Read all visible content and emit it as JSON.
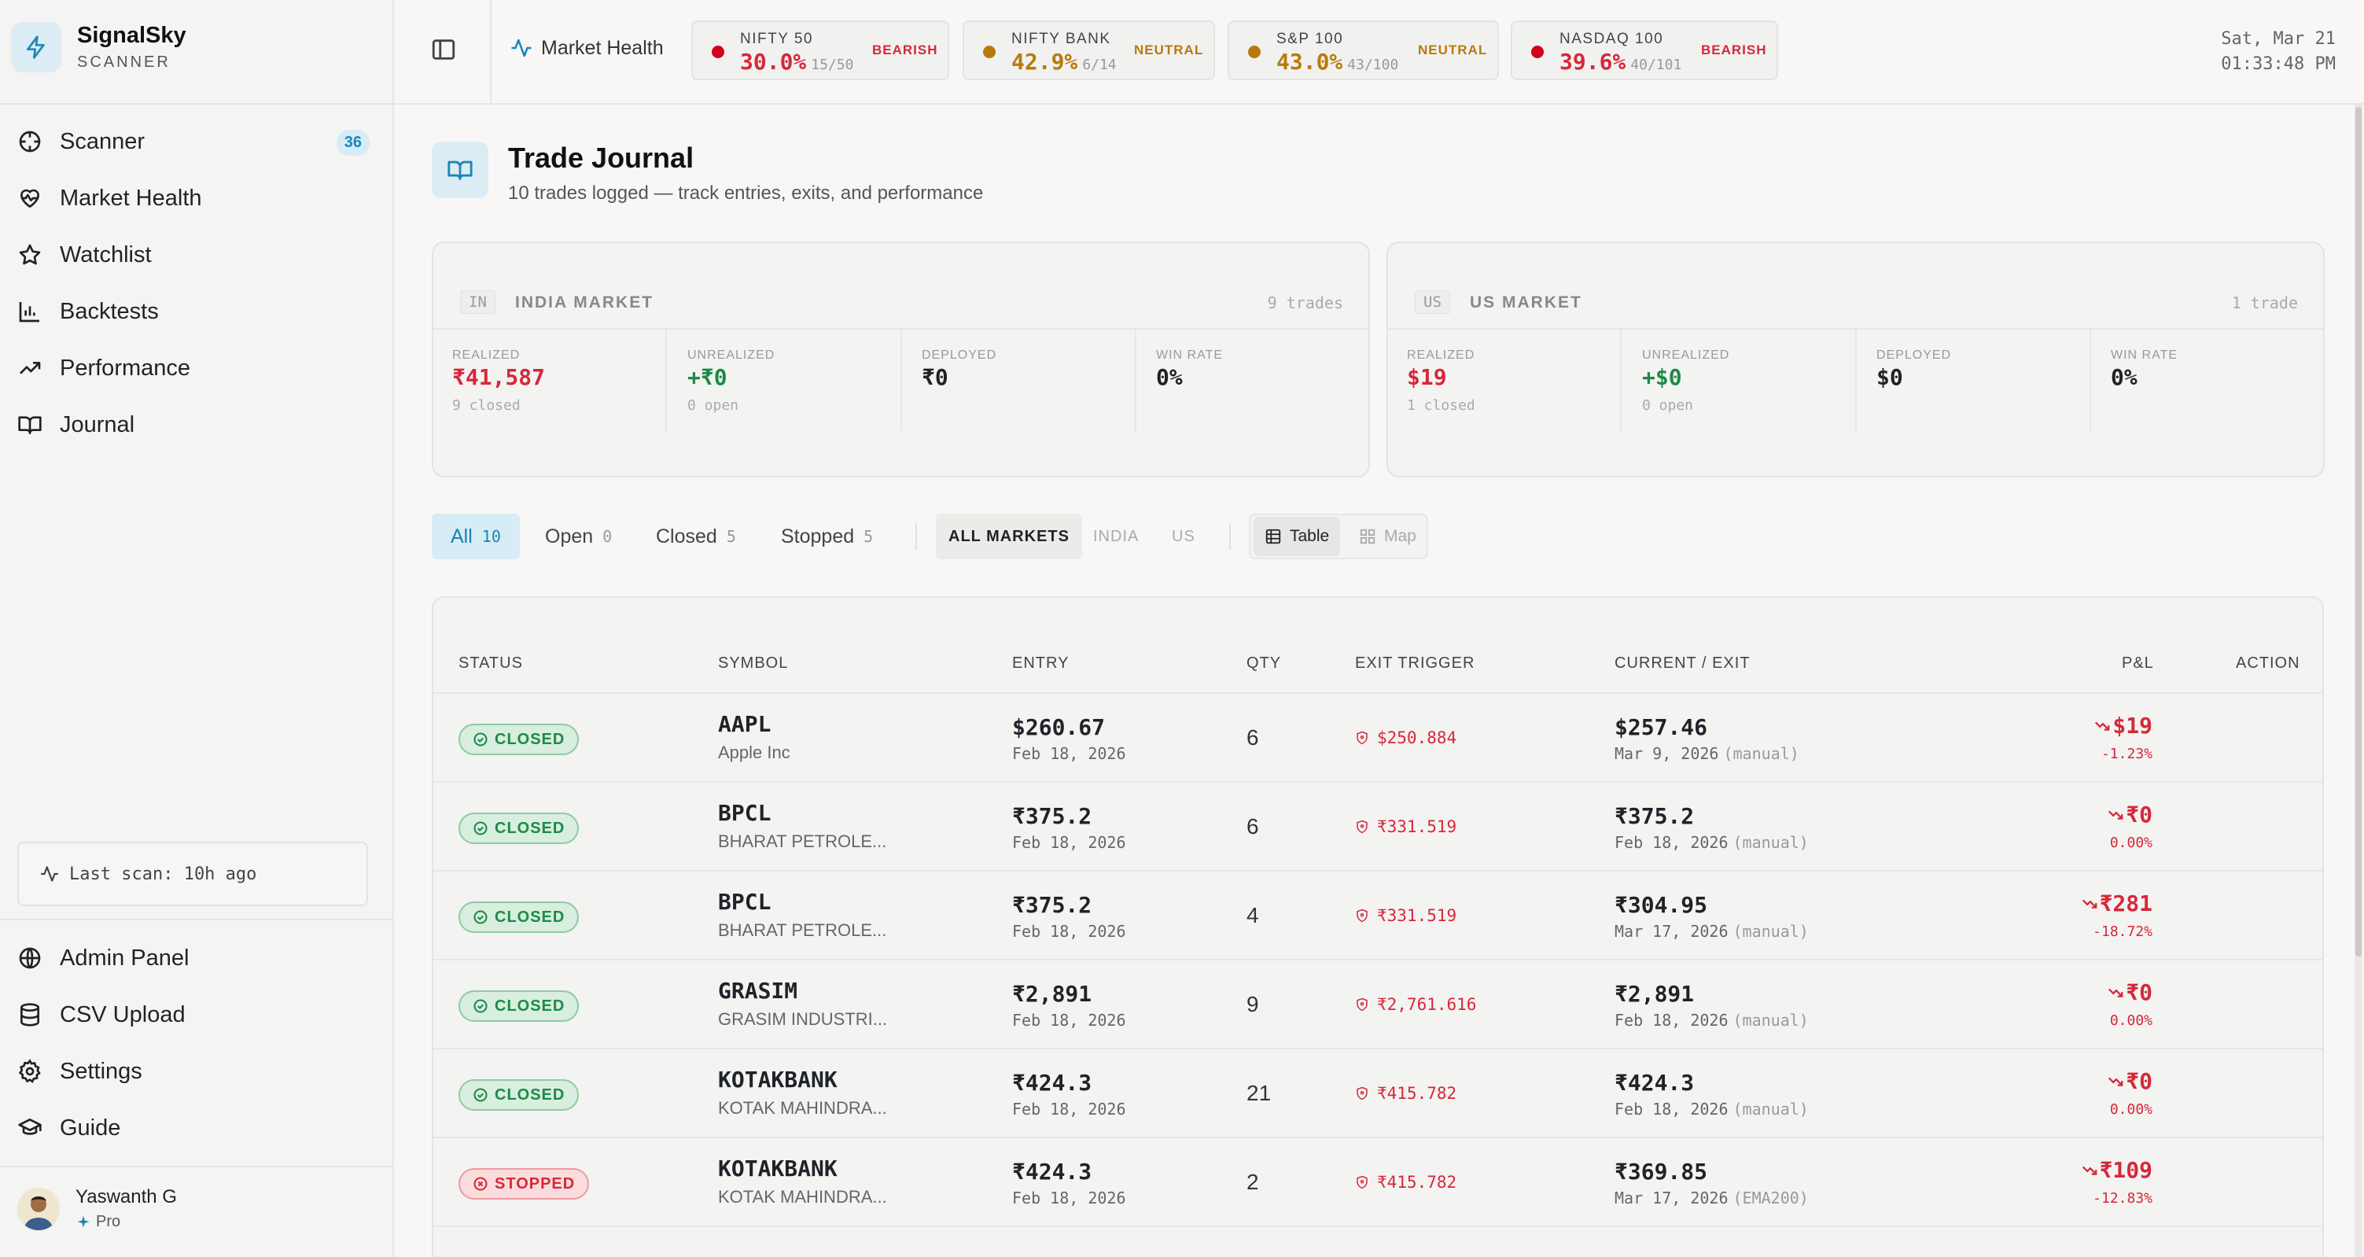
{
  "brand": {
    "name": "SignalSky",
    "sub": "SCANNER"
  },
  "sidebar": {
    "items": [
      {
        "label": "Scanner",
        "icon": "crosshair-icon",
        "badge": "36"
      },
      {
        "label": "Market Health",
        "icon": "heart-pulse-icon"
      },
      {
        "label": "Watchlist",
        "icon": "star-icon"
      },
      {
        "label": "Backtests",
        "icon": "bar-chart-icon"
      },
      {
        "label": "Performance",
        "icon": "trending-up-icon"
      },
      {
        "label": "Journal",
        "icon": "book-open-icon"
      }
    ],
    "last_scan": "Last scan: 10h ago",
    "bottom_items": [
      {
        "label": "Admin Panel",
        "icon": "globe-icon"
      },
      {
        "label": "CSV Upload",
        "icon": "database-icon"
      },
      {
        "label": "Settings",
        "icon": "gear-icon"
      },
      {
        "label": "Guide",
        "icon": "graduation-cap-icon"
      }
    ],
    "user": {
      "name": "Yaswanth G",
      "plan": "Pro"
    }
  },
  "header": {
    "market_health": "Market Health",
    "indices": [
      {
        "name": "NIFTY 50",
        "pct": "30.0%",
        "count": "15/50",
        "label": "BEARISH",
        "color": "#d6283a",
        "dot": "#d0021b"
      },
      {
        "name": "NIFTY BANK",
        "pct": "42.9%",
        "count": "6/14",
        "label": "NEUTRAL",
        "color": "#b97a0c",
        "dot": "#b97a0c"
      },
      {
        "name": "S&P 100",
        "pct": "43.0%",
        "count": "43/100",
        "label": "NEUTRAL",
        "color": "#b97a0c",
        "dot": "#b97a0c"
      },
      {
        "name": "NASDAQ 100",
        "pct": "39.6%",
        "count": "40/101",
        "label": "BEARISH",
        "color": "#d6283a",
        "dot": "#d0021b"
      }
    ],
    "date": "Sat, Mar 21",
    "time": "01:33:48 PM"
  },
  "page": {
    "title": "Trade Journal",
    "subtitle": "10 trades logged — track entries, exits, and performance"
  },
  "markets": [
    {
      "code": "IN",
      "name": "INDIA MARKET",
      "trades": "9 trades",
      "stats": [
        {
          "label": "REALIZED",
          "value": "₹41,587",
          "sub": "9 closed",
          "tone": "neg"
        },
        {
          "label": "UNREALIZED",
          "value": "+₹0",
          "sub": "0 open",
          "tone": "pos"
        },
        {
          "label": "DEPLOYED",
          "value": "₹0",
          "sub": "",
          "tone": "neu"
        },
        {
          "label": "WIN RATE",
          "value": "0%",
          "sub": "",
          "tone": "neu"
        }
      ]
    },
    {
      "code": "US",
      "name": "US MARKET",
      "trades": "1 trade",
      "stats": [
        {
          "label": "REALIZED",
          "value": "$19",
          "sub": "1 closed",
          "tone": "neg"
        },
        {
          "label": "UNREALIZED",
          "value": "+$0",
          "sub": "0 open",
          "tone": "pos"
        },
        {
          "label": "DEPLOYED",
          "value": "$0",
          "sub": "",
          "tone": "neu"
        },
        {
          "label": "WIN RATE",
          "value": "0%",
          "sub": "",
          "tone": "neu"
        }
      ]
    }
  ],
  "filters": {
    "status": [
      {
        "label": "All",
        "count": "10",
        "active": true
      },
      {
        "label": "Open",
        "count": "0"
      },
      {
        "label": "Closed",
        "count": "5"
      },
      {
        "label": "Stopped",
        "count": "5"
      }
    ],
    "markets": [
      {
        "label": "ALL MARKETS",
        "active": true
      },
      {
        "label": "INDIA"
      },
      {
        "label": "US"
      }
    ],
    "views": [
      {
        "label": "Table",
        "icon": "table-icon",
        "active": true
      },
      {
        "label": "Map",
        "icon": "grid-icon"
      }
    ]
  },
  "table": {
    "columns": [
      "STATUS",
      "SYMBOL",
      "ENTRY",
      "QTY",
      "EXIT TRIGGER",
      "CURRENT / EXIT",
      "P&L",
      "ACTION"
    ],
    "rows": [
      {
        "status": "CLOSED",
        "symbol": "AAPL",
        "company": "Apple Inc",
        "entry": "$260.67",
        "entry_date": "Feb 18, 2026",
        "qty": "6",
        "trigger": "$250.884",
        "current": "$257.46",
        "current_date": "Mar 9, 2026",
        "note": "(manual)",
        "pl": "$19",
        "pl_pct": "-1.23%"
      },
      {
        "status": "CLOSED",
        "symbol": "BPCL",
        "company": "BHARAT PETROLE...",
        "entry": "₹375.2",
        "entry_date": "Feb 18, 2026",
        "qty": "6",
        "trigger": "₹331.519",
        "current": "₹375.2",
        "current_date": "Feb 18, 2026",
        "note": "(manual)",
        "pl": "₹0",
        "pl_pct": "0.00%"
      },
      {
        "status": "CLOSED",
        "symbol": "BPCL",
        "company": "BHARAT PETROLE...",
        "entry": "₹375.2",
        "entry_date": "Feb 18, 2026",
        "qty": "4",
        "trigger": "₹331.519",
        "current": "₹304.95",
        "current_date": "Mar 17, 2026",
        "note": "(manual)",
        "pl": "₹281",
        "pl_pct": "-18.72%"
      },
      {
        "status": "CLOSED",
        "symbol": "GRASIM",
        "company": "GRASIM INDUSTRI...",
        "entry": "₹2,891",
        "entry_date": "Feb 18, 2026",
        "qty": "9",
        "trigger": "₹2,761.616",
        "current": "₹2,891",
        "current_date": "Feb 18, 2026",
        "note": "(manual)",
        "pl": "₹0",
        "pl_pct": "0.00%"
      },
      {
        "status": "CLOSED",
        "symbol": "KOTAKBANK",
        "company": "KOTAK MAHINDRA...",
        "entry": "₹424.3",
        "entry_date": "Feb 18, 2026",
        "qty": "21",
        "trigger": "₹415.782",
        "current": "₹424.3",
        "current_date": "Feb 18, 2026",
        "note": "(manual)",
        "pl": "₹0",
        "pl_pct": "0.00%"
      },
      {
        "status": "STOPPED",
        "symbol": "KOTAKBANK",
        "company": "KOTAK MAHINDRA...",
        "entry": "₹424.3",
        "entry_date": "Feb 18, 2026",
        "qty": "2",
        "trigger": "₹415.782",
        "current": "₹369.85",
        "current_date": "Mar 17, 2026",
        "note": "(EMA200)",
        "pl": "₹109",
        "pl_pct": "-12.83%"
      }
    ]
  },
  "colors": {
    "accent": "#1d86b6",
    "negative": "#d6283a",
    "positive": "#1d8a46",
    "neutral": "#b97a0c"
  }
}
